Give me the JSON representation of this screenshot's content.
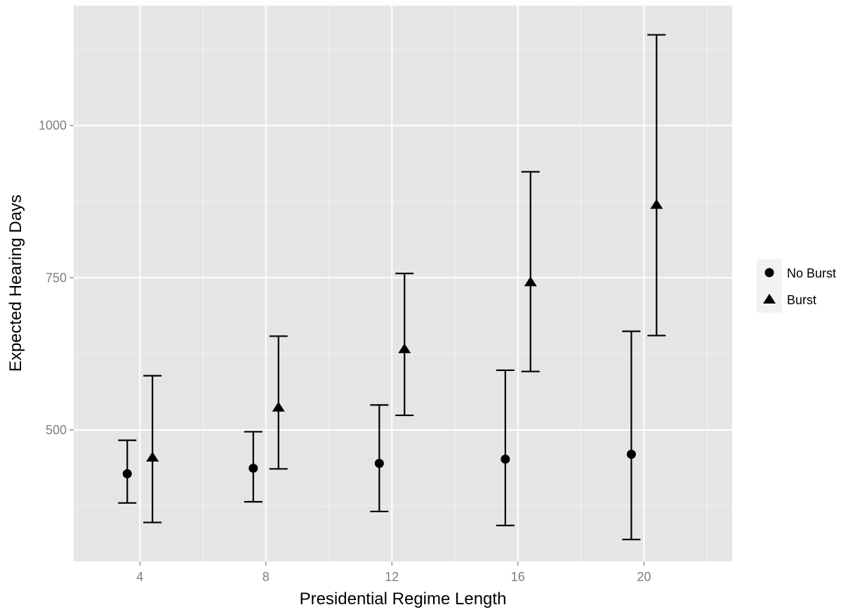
{
  "chart_data": {
    "type": "scatter",
    "title": "",
    "xlabel": "Presidential Regime Length",
    "ylabel": "Expected Hearing Days",
    "x_ticks": [
      4,
      8,
      12,
      16,
      20
    ],
    "y_ticks": [
      500,
      750,
      1000
    ],
    "xlim": [
      1.9,
      22.8
    ],
    "ylim": [
      284,
      1197
    ],
    "grid": true,
    "legend_position": "right",
    "dodge": 0.4,
    "series": [
      {
        "name": "No Burst",
        "marker": "circle",
        "color": "#000000",
        "x": [
          4,
          8,
          12,
          16,
          20
        ],
        "y": [
          428,
          437,
          445,
          452,
          460
        ],
        "lower": [
          380,
          382,
          366,
          343,
          320
        ],
        "upper": [
          483,
          497,
          541,
          598,
          662
        ]
      },
      {
        "name": "Burst",
        "marker": "triangle",
        "color": "#000000",
        "x": [
          4,
          8,
          12,
          16,
          20
        ],
        "y": [
          455,
          537,
          633,
          743,
          870
        ],
        "lower": [
          348,
          436,
          524,
          596,
          655
        ],
        "upper": [
          589,
          654,
          757,
          924,
          1149
        ]
      }
    ]
  }
}
